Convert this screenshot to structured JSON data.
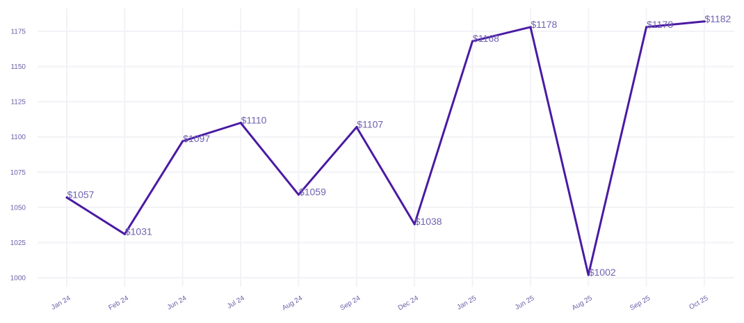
{
  "chart_data": {
    "type": "line",
    "title": "",
    "xlabel": "",
    "ylabel": "",
    "categories": [
      "Jan 24",
      "Feb 24",
      "Jun 24",
      "Jul 24",
      "Aug 24",
      "Sep 24",
      "Dec 24",
      "Jan 25",
      "Jun 25",
      "Aug 25",
      "Sep 25",
      "Oct 25"
    ],
    "series": [
      {
        "values": [
          1057,
          1031,
          1097,
          1110,
          1059,
          1107,
          1038,
          1168,
          1178,
          1002,
          1178,
          1182
        ],
        "labels": [
          "$1057",
          "$1031",
          "$1097",
          "$1110",
          "$1059",
          "$1107",
          "$1038",
          "$1168",
          "$1178",
          "$1002",
          "$1178",
          "$1182"
        ]
      }
    ],
    "yticks": [
      "1000",
      "1025",
      "1050",
      "1075",
      "1100",
      "1125",
      "1150",
      "1175"
    ],
    "ylim": [
      998,
      1183
    ],
    "grid": true,
    "legend": "none",
    "colors": {
      "line": "#4a1aa3",
      "label": "#6f63b0",
      "tick": "#6b5fa8",
      "grid": "#f2f2f7"
    }
  }
}
